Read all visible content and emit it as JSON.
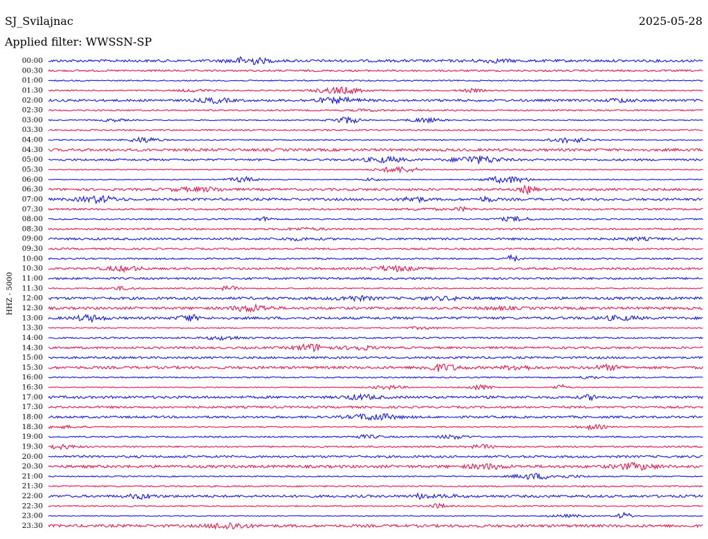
{
  "header": {
    "station": "SJ_Svilajnac",
    "date": "2025-05-28",
    "filter": "Applied filter: WWSSN-SP"
  },
  "axis_label": "HHZ - 5000",
  "trace_colors": [
    "#1010f0",
    "#f0104a"
  ],
  "rows": [
    "00:00",
    "00:30",
    "01:00",
    "01:30",
    "02:00",
    "02:30",
    "03:00",
    "03:30",
    "04:00",
    "04:30",
    "05:00",
    "05:30",
    "06:00",
    "06:30",
    "07:00",
    "07:30",
    "08:00",
    "08:30",
    "09:00",
    "09:30",
    "10:00",
    "10:30",
    "11:00",
    "11:30",
    "12:00",
    "12:30",
    "13:00",
    "13:30",
    "14:00",
    "14:30",
    "15:00",
    "15:30",
    "16:00",
    "16:30",
    "17:00",
    "17:30",
    "18:00",
    "18:30",
    "19:00",
    "19:30",
    "20:00",
    "20:30",
    "21:00",
    "21:30",
    "22:00",
    "22:30",
    "23:00",
    "23:30"
  ]
}
